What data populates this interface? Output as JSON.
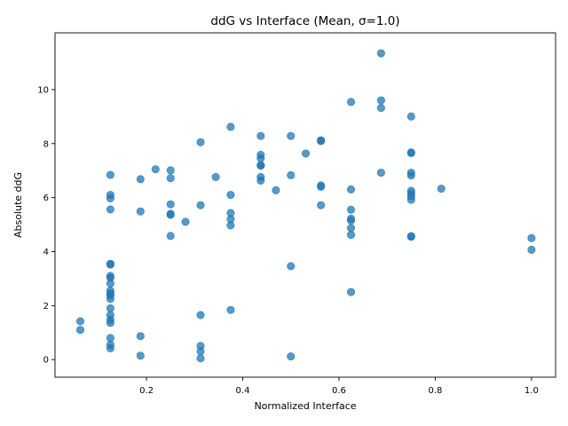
{
  "chart_data": {
    "type": "scatter",
    "title": "ddG vs Interface (Mean, σ=1.0)",
    "xlabel": "Normalized Interface",
    "ylabel": "Absolute ddG",
    "xlim": [
      0.01,
      1.05
    ],
    "ylim": [
      -0.65,
      12.1
    ],
    "x_ticks": [
      0.2,
      0.4,
      0.6,
      0.8,
      1.0
    ],
    "x_tick_labels": [
      "0.2",
      "0.4",
      "0.6",
      "0.8",
      "1.0"
    ],
    "y_ticks": [
      0,
      2,
      4,
      6,
      8,
      10
    ],
    "y_tick_labels": [
      "0",
      "2",
      "4",
      "6",
      "8",
      "10"
    ],
    "grid": false,
    "marker_color": "#1f77b4",
    "points": [
      {
        "x": 0.0625,
        "y": 1.42
      },
      {
        "x": 0.0625,
        "y": 1.1
      },
      {
        "x": 0.125,
        "y": 6.84
      },
      {
        "x": 0.125,
        "y": 6.1
      },
      {
        "x": 0.125,
        "y": 5.97
      },
      {
        "x": 0.125,
        "y": 5.56
      },
      {
        "x": 0.125,
        "y": 3.55
      },
      {
        "x": 0.125,
        "y": 3.52
      },
      {
        "x": 0.125,
        "y": 3.1
      },
      {
        "x": 0.125,
        "y": 3.03
      },
      {
        "x": 0.125,
        "y": 2.82
      },
      {
        "x": 0.125,
        "y": 2.55
      },
      {
        "x": 0.125,
        "y": 2.45
      },
      {
        "x": 0.125,
        "y": 2.38
      },
      {
        "x": 0.125,
        "y": 2.25
      },
      {
        "x": 0.125,
        "y": 1.9
      },
      {
        "x": 0.125,
        "y": 1.65
      },
      {
        "x": 0.125,
        "y": 1.48
      },
      {
        "x": 0.125,
        "y": 1.36
      },
      {
        "x": 0.125,
        "y": 0.8
      },
      {
        "x": 0.125,
        "y": 0.55
      },
      {
        "x": 0.125,
        "y": 0.42
      },
      {
        "x": 0.1875,
        "y": 6.68
      },
      {
        "x": 0.1875,
        "y": 5.49
      },
      {
        "x": 0.1875,
        "y": 0.87
      },
      {
        "x": 0.1875,
        "y": 0.15
      },
      {
        "x": 0.219,
        "y": 7.05
      },
      {
        "x": 0.25,
        "y": 7.01
      },
      {
        "x": 0.25,
        "y": 6.72
      },
      {
        "x": 0.25,
        "y": 5.75
      },
      {
        "x": 0.25,
        "y": 5.4
      },
      {
        "x": 0.25,
        "y": 5.36
      },
      {
        "x": 0.25,
        "y": 4.58
      },
      {
        "x": 0.281,
        "y": 5.1
      },
      {
        "x": 0.3125,
        "y": 8.05
      },
      {
        "x": 0.3125,
        "y": 5.72
      },
      {
        "x": 0.3125,
        "y": 1.65
      },
      {
        "x": 0.3125,
        "y": 0.51
      },
      {
        "x": 0.3125,
        "y": 0.31
      },
      {
        "x": 0.3125,
        "y": 0.05
      },
      {
        "x": 0.344,
        "y": 6.76
      },
      {
        "x": 0.375,
        "y": 8.62
      },
      {
        "x": 0.375,
        "y": 6.1
      },
      {
        "x": 0.375,
        "y": 5.43
      },
      {
        "x": 0.375,
        "y": 5.2
      },
      {
        "x": 0.375,
        "y": 4.97
      },
      {
        "x": 0.375,
        "y": 1.84
      },
      {
        "x": 0.4375,
        "y": 8.28
      },
      {
        "x": 0.4375,
        "y": 7.58
      },
      {
        "x": 0.4375,
        "y": 7.45
      },
      {
        "x": 0.4375,
        "y": 7.2
      },
      {
        "x": 0.4375,
        "y": 7.18
      },
      {
        "x": 0.4375,
        "y": 6.76
      },
      {
        "x": 0.4375,
        "y": 6.63
      },
      {
        "x": 0.469,
        "y": 6.27
      },
      {
        "x": 0.5,
        "y": 8.28
      },
      {
        "x": 0.5,
        "y": 6.83
      },
      {
        "x": 0.5,
        "y": 3.46
      },
      {
        "x": 0.5,
        "y": 0.12
      },
      {
        "x": 0.531,
        "y": 7.63
      },
      {
        "x": 0.5625,
        "y": 8.12
      },
      {
        "x": 0.5625,
        "y": 8.09
      },
      {
        "x": 0.5625,
        "y": 6.45
      },
      {
        "x": 0.5625,
        "y": 6.4
      },
      {
        "x": 0.5625,
        "y": 5.72
      },
      {
        "x": 0.625,
        "y": 9.54
      },
      {
        "x": 0.625,
        "y": 6.3
      },
      {
        "x": 0.625,
        "y": 5.55
      },
      {
        "x": 0.625,
        "y": 5.22
      },
      {
        "x": 0.625,
        "y": 5.15
      },
      {
        "x": 0.625,
        "y": 4.87
      },
      {
        "x": 0.625,
        "y": 4.62
      },
      {
        "x": 0.625,
        "y": 2.5
      },
      {
        "x": 0.6875,
        "y": 11.34
      },
      {
        "x": 0.6875,
        "y": 9.6
      },
      {
        "x": 0.6875,
        "y": 9.32
      },
      {
        "x": 0.6875,
        "y": 6.92
      },
      {
        "x": 0.75,
        "y": 9.0
      },
      {
        "x": 0.75,
        "y": 7.67
      },
      {
        "x": 0.75,
        "y": 7.65
      },
      {
        "x": 0.75,
        "y": 6.92
      },
      {
        "x": 0.75,
        "y": 6.82
      },
      {
        "x": 0.75,
        "y": 6.25
      },
      {
        "x": 0.75,
        "y": 6.15
      },
      {
        "x": 0.75,
        "y": 6.05
      },
      {
        "x": 0.75,
        "y": 5.92
      },
      {
        "x": 0.75,
        "y": 4.57
      },
      {
        "x": 0.75,
        "y": 4.55
      },
      {
        "x": 0.8125,
        "y": 6.33
      },
      {
        "x": 1.0,
        "y": 4.5
      },
      {
        "x": 1.0,
        "y": 4.07
      }
    ]
  }
}
